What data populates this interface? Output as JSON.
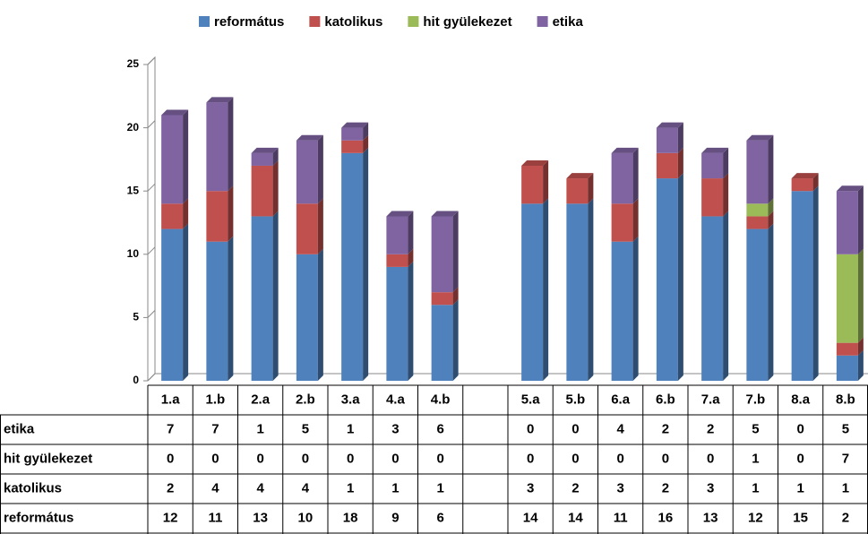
{
  "chart_data": {
    "type": "bar",
    "stacked": true,
    "categories": [
      "1.a",
      "1.b",
      "2.a",
      "2.b",
      "3.a",
      "4.a",
      "4.b",
      null,
      "5.a",
      "5.b",
      "6.a",
      "6.b",
      "7.a",
      "7.b",
      "8.a",
      "8.b"
    ],
    "series": [
      {
        "name": "református",
        "color": "#4f81bd",
        "values": [
          12,
          11,
          13,
          10,
          18,
          9,
          6,
          null,
          14,
          14,
          11,
          16,
          13,
          12,
          15,
          2
        ]
      },
      {
        "name": "katolikus",
        "color": "#c0504d",
        "values": [
          2,
          4,
          4,
          4,
          1,
          1,
          1,
          null,
          3,
          2,
          3,
          2,
          3,
          1,
          1,
          1
        ]
      },
      {
        "name": "hit gyülekezet",
        "color": "#9bbb59",
        "values": [
          0,
          0,
          0,
          0,
          0,
          0,
          0,
          null,
          0,
          0,
          0,
          0,
          0,
          1,
          0,
          7
        ]
      },
      {
        "name": "etika",
        "color": "#8064a2",
        "values": [
          7,
          7,
          1,
          5,
          1,
          3,
          6,
          null,
          0,
          0,
          4,
          2,
          2,
          5,
          0,
          5
        ]
      }
    ],
    "ylim": [
      0,
      25
    ],
    "yticks": [
      0,
      5,
      10,
      15,
      20,
      25
    ],
    "legend": "top",
    "data_table": true
  }
}
